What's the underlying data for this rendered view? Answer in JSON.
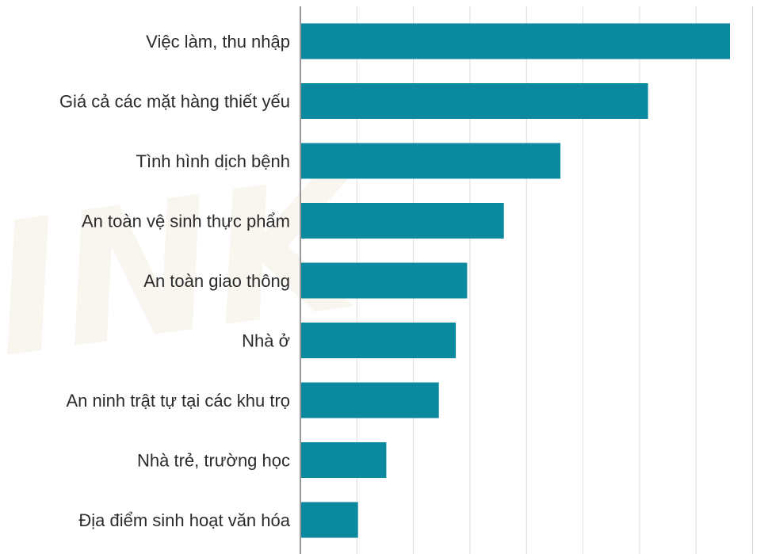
{
  "colors": {
    "bar": "#0b899e",
    "gridline": "#dcdcdc",
    "axis": "#9a9a9a",
    "label": "#2b2b2b"
  },
  "chart_data": {
    "type": "bar",
    "orientation": "horizontal",
    "title": "",
    "xlabel": "",
    "ylabel": "",
    "categories": [
      "Việc làm, thu nhập",
      "Giá cả các mặt hàng thiết yếu",
      "Tình hình dịch bệnh",
      "An toàn vệ sinh thực phẩm",
      "An toàn giao thông",
      "Nhà ở",
      "An ninh trật tự tại các khu trọ",
      "Nhà trẻ, trường học",
      "Địa điểm sinh hoạt văn hóa"
    ],
    "values": [
      76,
      61.5,
      46,
      36,
      29.5,
      27.5,
      24.5,
      15.2,
      10.2
    ],
    "xlim": [
      0,
      80
    ],
    "grid": true,
    "tick_labels_visible": false,
    "legend": "none"
  }
}
